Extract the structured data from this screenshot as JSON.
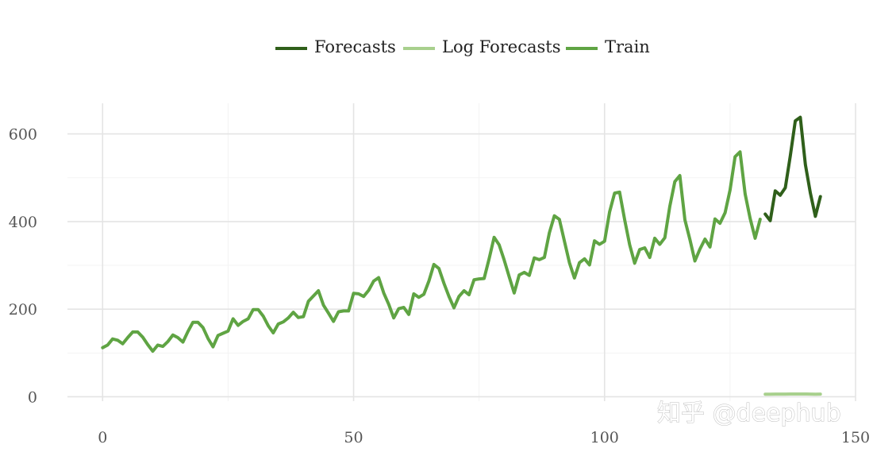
{
  "watermark": "知乎 @deephub",
  "chart_data": {
    "type": "line",
    "xlim": [
      -7,
      150
    ],
    "ylim": [
      -10,
      670
    ],
    "x_ticks": [
      0,
      50,
      100,
      150
    ],
    "y_ticks": [
      0,
      200,
      400,
      600
    ],
    "grid": true,
    "legend_position": "top-center",
    "series": [
      {
        "name": "Forecasts",
        "color": "#2f5f1a",
        "x_start": 132,
        "values": [
          417,
          402,
          470,
          460,
          477,
          550,
          630,
          638,
          530,
          465,
          412,
          457
        ]
      },
      {
        "name": "Log Forecasts",
        "color": "#a8d08d",
        "x_start": 132,
        "values": [
          6.0,
          6.0,
          6.1,
          6.1,
          6.2,
          6.3,
          6.4,
          6.4,
          6.3,
          6.2,
          6.0,
          6.1
        ]
      },
      {
        "name": "Train",
        "color": "#5fa443",
        "x_start": 0,
        "values": [
          112,
          118,
          132,
          129,
          121,
          135,
          148,
          148,
          136,
          119,
          104,
          118,
          115,
          126,
          141,
          135,
          125,
          149,
          170,
          170,
          158,
          133,
          114,
          140,
          145,
          150,
          178,
          163,
          172,
          178,
          199,
          199,
          184,
          162,
          146,
          166,
          171,
          180,
          193,
          181,
          183,
          218,
          230,
          242,
          209,
          191,
          172,
          194,
          196,
          196,
          236,
          235,
          229,
          243,
          264,
          272,
          237,
          211,
          180,
          201,
          204,
          188,
          235,
          227,
          234,
          264,
          302,
          293,
          259,
          229,
          203,
          229,
          242,
          233,
          267,
          269,
          270,
          315,
          364,
          347,
          312,
          274,
          237,
          278,
          284,
          277,
          317,
          313,
          318,
          374,
          413,
          405,
          355,
          306,
          271,
          306,
          315,
          301,
          356,
          348,
          355,
          422,
          465,
          467,
          404,
          347,
          305,
          336,
          340,
          318,
          362,
          348,
          363,
          435,
          491,
          505,
          404,
          359,
          310,
          337,
          360,
          342,
          406,
          396,
          420,
          472,
          548,
          559,
          463,
          407,
          362,
          405
        ]
      }
    ]
  }
}
